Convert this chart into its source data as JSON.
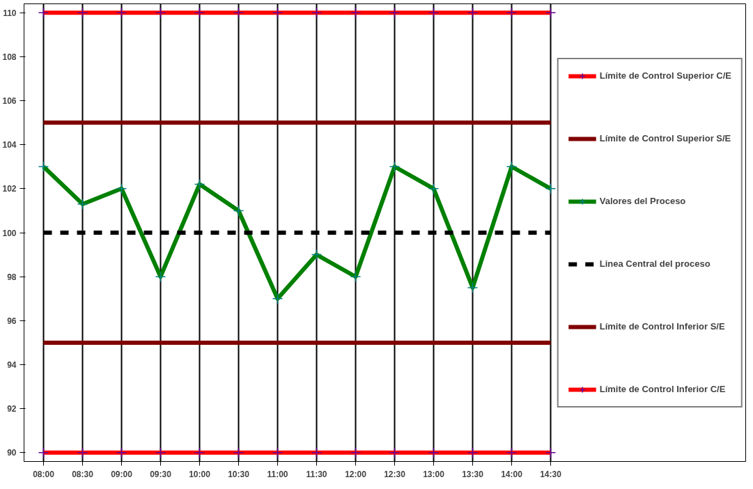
{
  "chart_data": {
    "type": "line",
    "categories": [
      "08:00",
      "08:30",
      "09:00",
      "09:30",
      "10:00",
      "10:30",
      "11:00",
      "11:30",
      "12:00",
      "12:30",
      "13:00",
      "13:30",
      "14:00",
      "14:30"
    ],
    "ylim": [
      89.6,
      110.4
    ],
    "yticks": [
      90,
      92,
      94,
      96,
      98,
      100,
      102,
      104,
      106,
      108,
      110
    ],
    "grid": "x",
    "legend": "right",
    "series": [
      {
        "name": "Límite de Control Superior C/E",
        "color": "#ff0000",
        "marker": "cross",
        "line_style": "solid",
        "values": [
          110,
          110,
          110,
          110,
          110,
          110,
          110,
          110,
          110,
          110,
          110,
          110,
          110,
          110
        ]
      },
      {
        "name": "Límite de Control Superior S/E",
        "color": "#800000",
        "marker": "none",
        "line_style": "solid",
        "values": [
          105,
          105,
          105,
          105,
          105,
          105,
          105,
          105,
          105,
          105,
          105,
          105,
          105,
          105
        ]
      },
      {
        "name": "Valores del Proceso",
        "color": "#008000",
        "marker": "cross",
        "line_style": "solid",
        "values": [
          103,
          101.3,
          102,
          98,
          102.2,
          101,
          97,
          99,
          98,
          103,
          102,
          97.5,
          103,
          102
        ]
      },
      {
        "name": "Linea Central del proceso",
        "color": "#000000",
        "marker": "none",
        "line_style": "dashed",
        "values": [
          100,
          100,
          100,
          100,
          100,
          100,
          100,
          100,
          100,
          100,
          100,
          100,
          100,
          100
        ]
      },
      {
        "name": "Límite de Control Inferior S/E",
        "color": "#800000",
        "marker": "none",
        "line_style": "solid",
        "values": [
          95,
          95,
          95,
          95,
          95,
          95,
          95,
          95,
          95,
          95,
          95,
          95,
          95,
          95
        ]
      },
      {
        "name": "Límite de Control Inferior C/E",
        "color": "#ff0000",
        "marker": "cross",
        "line_style": "solid",
        "values": [
          90,
          90,
          90,
          90,
          90,
          90,
          90,
          90,
          90,
          90,
          90,
          90,
          90,
          90
        ]
      }
    ]
  }
}
